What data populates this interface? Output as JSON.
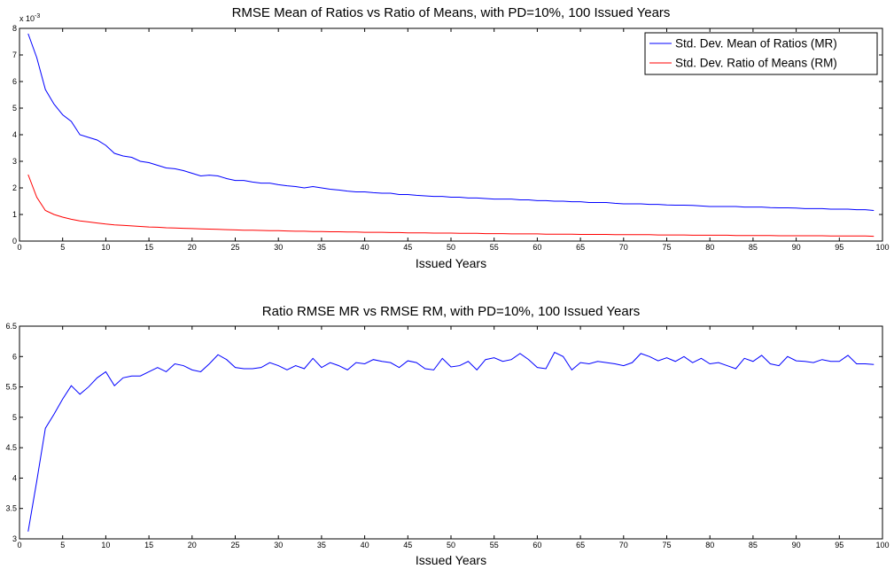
{
  "chart_data": [
    {
      "type": "line",
      "title": "RMSE Mean of Ratios vs Ratio of Means, with PD=10%, 100 Issued Years",
      "xlabel": "Issued Years",
      "ylabel": "",
      "y_exponent_label": "x 10",
      "y_exponent_power": "-3",
      "xlim": [
        0,
        100
      ],
      "ylim": [
        0,
        8
      ],
      "xticks": [
        0,
        5,
        10,
        15,
        20,
        25,
        30,
        35,
        40,
        45,
        50,
        55,
        60,
        65,
        70,
        75,
        80,
        85,
        90,
        95,
        100
      ],
      "yticks": [
        0,
        1,
        2,
        3,
        4,
        5,
        6,
        7,
        8
      ],
      "grid": false,
      "legend_position": "top-right",
      "series": [
        {
          "name": "Std. Dev. Mean of Ratios (MR)",
          "color": "#0000ff",
          "x": [
            1,
            2,
            3,
            4,
            5,
            6,
            7,
            8,
            9,
            10,
            11,
            12,
            13,
            14,
            15,
            16,
            17,
            18,
            19,
            20,
            21,
            22,
            23,
            24,
            25,
            26,
            27,
            28,
            29,
            30,
            31,
            32,
            33,
            34,
            35,
            36,
            37,
            38,
            39,
            40,
            41,
            42,
            43,
            44,
            45,
            46,
            47,
            48,
            49,
            50,
            51,
            52,
            53,
            54,
            55,
            56,
            57,
            58,
            59,
            60,
            61,
            62,
            63,
            64,
            65,
            66,
            67,
            68,
            69,
            70,
            71,
            72,
            73,
            74,
            75,
            76,
            77,
            78,
            79,
            80,
            81,
            82,
            83,
            84,
            85,
            86,
            87,
            88,
            89,
            90,
            91,
            92,
            93,
            94,
            95,
            96,
            97,
            98,
            99
          ],
          "values": [
            7.8,
            6.9,
            5.7,
            5.15,
            4.75,
            4.5,
            4.0,
            3.9,
            3.8,
            3.6,
            3.3,
            3.2,
            3.15,
            3.0,
            2.95,
            2.85,
            2.75,
            2.72,
            2.65,
            2.55,
            2.45,
            2.48,
            2.45,
            2.35,
            2.28,
            2.28,
            2.22,
            2.18,
            2.18,
            2.12,
            2.08,
            2.05,
            2.0,
            2.05,
            2.0,
            1.95,
            1.92,
            1.88,
            1.85,
            1.85,
            1.82,
            1.8,
            1.8,
            1.75,
            1.75,
            1.72,
            1.7,
            1.68,
            1.68,
            1.65,
            1.65,
            1.62,
            1.62,
            1.6,
            1.58,
            1.58,
            1.58,
            1.55,
            1.55,
            1.52,
            1.52,
            1.5,
            1.5,
            1.48,
            1.48,
            1.45,
            1.45,
            1.45,
            1.42,
            1.4,
            1.4,
            1.4,
            1.38,
            1.38,
            1.36,
            1.35,
            1.35,
            1.34,
            1.32,
            1.3,
            1.3,
            1.3,
            1.3,
            1.28,
            1.28,
            1.28,
            1.26,
            1.25,
            1.25,
            1.24,
            1.22,
            1.22,
            1.22,
            1.2,
            1.2,
            1.2,
            1.18,
            1.18,
            1.15
          ]
        },
        {
          "name": "Std. Dev. Ratio of Means (RM)",
          "color": "#ff0000",
          "x": [
            1,
            2,
            3,
            4,
            5,
            6,
            7,
            8,
            9,
            10,
            11,
            12,
            13,
            14,
            15,
            16,
            17,
            18,
            19,
            20,
            21,
            22,
            23,
            24,
            25,
            26,
            27,
            28,
            29,
            30,
            31,
            32,
            33,
            34,
            35,
            36,
            37,
            38,
            39,
            40,
            41,
            42,
            43,
            44,
            45,
            46,
            47,
            48,
            49,
            50,
            51,
            52,
            53,
            54,
            55,
            56,
            57,
            58,
            59,
            60,
            61,
            62,
            63,
            64,
            65,
            66,
            67,
            68,
            69,
            70,
            71,
            72,
            73,
            74,
            75,
            76,
            77,
            78,
            79,
            80,
            81,
            82,
            83,
            84,
            85,
            86,
            87,
            88,
            89,
            90,
            91,
            92,
            93,
            94,
            95,
            96,
            97,
            98,
            99
          ],
          "values": [
            2.5,
            1.65,
            1.15,
            1.0,
            0.9,
            0.82,
            0.76,
            0.72,
            0.68,
            0.64,
            0.61,
            0.59,
            0.57,
            0.55,
            0.53,
            0.52,
            0.5,
            0.49,
            0.48,
            0.47,
            0.46,
            0.45,
            0.44,
            0.43,
            0.42,
            0.41,
            0.41,
            0.4,
            0.39,
            0.39,
            0.38,
            0.37,
            0.37,
            0.36,
            0.36,
            0.35,
            0.35,
            0.34,
            0.34,
            0.33,
            0.33,
            0.33,
            0.32,
            0.32,
            0.31,
            0.31,
            0.31,
            0.3,
            0.3,
            0.3,
            0.29,
            0.29,
            0.29,
            0.28,
            0.28,
            0.28,
            0.27,
            0.27,
            0.27,
            0.27,
            0.26,
            0.26,
            0.26,
            0.26,
            0.25,
            0.25,
            0.25,
            0.25,
            0.24,
            0.24,
            0.24,
            0.24,
            0.24,
            0.23,
            0.23,
            0.23,
            0.23,
            0.22,
            0.22,
            0.22,
            0.22,
            0.22,
            0.21,
            0.21,
            0.21,
            0.21,
            0.21,
            0.2,
            0.2,
            0.2,
            0.2,
            0.2,
            0.2,
            0.19,
            0.19,
            0.19,
            0.19,
            0.19,
            0.18
          ]
        }
      ]
    },
    {
      "type": "line",
      "title": "Ratio RMSE MR vs RMSE RM, with PD=10%, 100 Issued Years",
      "xlabel": "Issued Years",
      "ylabel": "",
      "xlim": [
        0,
        100
      ],
      "ylim": [
        3,
        6.5
      ],
      "xticks": [
        0,
        5,
        10,
        15,
        20,
        25,
        30,
        35,
        40,
        45,
        50,
        55,
        60,
        65,
        70,
        75,
        80,
        85,
        90,
        95,
        100
      ],
      "yticks": [
        3,
        3.5,
        4,
        4.5,
        5,
        5.5,
        6,
        6.5
      ],
      "grid": false,
      "series": [
        {
          "color": "#0000ff",
          "x": [
            1,
            2,
            3,
            4,
            5,
            6,
            7,
            8,
            9,
            10,
            11,
            12,
            13,
            14,
            15,
            16,
            17,
            18,
            19,
            20,
            21,
            22,
            23,
            24,
            25,
            26,
            27,
            28,
            29,
            30,
            31,
            32,
            33,
            34,
            35,
            36,
            37,
            38,
            39,
            40,
            41,
            42,
            43,
            44,
            45,
            46,
            47,
            48,
            49,
            50,
            51,
            52,
            53,
            54,
            55,
            56,
            57,
            58,
            59,
            60,
            61,
            62,
            63,
            64,
            65,
            66,
            67,
            68,
            69,
            70,
            71,
            72,
            73,
            74,
            75,
            76,
            77,
            78,
            79,
            80,
            81,
            82,
            83,
            84,
            85,
            86,
            87,
            88,
            89,
            90,
            91,
            92,
            93,
            94,
            95,
            96,
            97,
            98,
            99
          ],
          "values": [
            3.12,
            3.95,
            4.82,
            5.05,
            5.3,
            5.52,
            5.38,
            5.5,
            5.65,
            5.75,
            5.52,
            5.65,
            5.68,
            5.68,
            5.75,
            5.82,
            5.75,
            5.88,
            5.85,
            5.78,
            5.75,
            5.88,
            6.03,
            5.95,
            5.82,
            5.8,
            5.8,
            5.82,
            5.9,
            5.85,
            5.78,
            5.85,
            5.8,
            5.97,
            5.82,
            5.9,
            5.85,
            5.78,
            5.9,
            5.88,
            5.95,
            5.92,
            5.9,
            5.82,
            5.93,
            5.9,
            5.8,
            5.78,
            5.97,
            5.83,
            5.85,
            5.92,
            5.78,
            5.95,
            5.98,
            5.92,
            5.95,
            6.05,
            5.95,
            5.82,
            5.8,
            6.07,
            6.0,
            5.78,
            5.9,
            5.88,
            5.92,
            5.9,
            5.88,
            5.85,
            5.9,
            6.05,
            6.0,
            5.93,
            5.98,
            5.92,
            6.0,
            5.9,
            5.97,
            5.88,
            5.9,
            5.85,
            5.8,
            5.97,
            5.92,
            6.02,
            5.88,
            5.85,
            6.0,
            5.93,
            5.92,
            5.9,
            5.95,
            5.92,
            5.92,
            6.02,
            5.88,
            5.88,
            5.87
          ]
        }
      ]
    }
  ]
}
